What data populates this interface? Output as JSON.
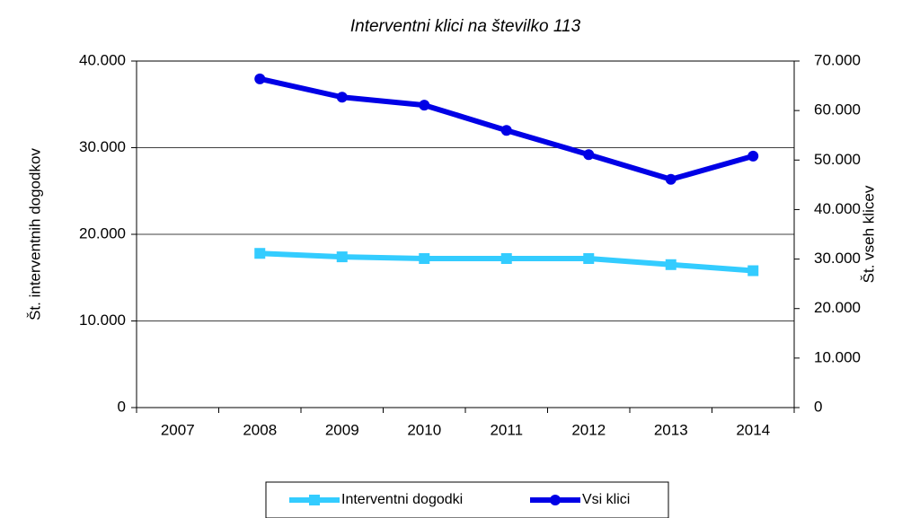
{
  "chart_data": {
    "type": "line",
    "title": "Interventni klici na številko 113",
    "ylabel": "Št. interventnih dogodkov",
    "y2label": "Št. vseh klicev",
    "categories": [
      "2007",
      "2008",
      "2009",
      "2010",
      "2011",
      "2012",
      "2013",
      "2014"
    ],
    "series": [
      {
        "name": "Interventni dogodki",
        "color": "#33ccff",
        "marker": "square",
        "values": [
          null,
          17800,
          17400,
          17200,
          17200,
          17200,
          16500,
          15800
        ]
      },
      {
        "name": "Vsi klici",
        "color": "#0000e6",
        "marker": "circle",
        "axis": "y2",
        "values": [
          null,
          66400,
          62700,
          61100,
          56000,
          51100,
          46100,
          50800
        ]
      }
    ],
    "ylim": [
      0,
      40000
    ],
    "yticks": [
      0,
      {
        "value": 10000,
        "label": "10.000"
      },
      {
        "value": 20000,
        "label": "20.000"
      },
      {
        "value": 30000,
        "label": "30.000"
      },
      {
        "value": 40000,
        "label": "40.000"
      }
    ],
    "y2lim": [
      0,
      70000
    ],
    "y2ticks": [
      0,
      {
        "value": 10000,
        "label": "10.000"
      },
      {
        "value": 20000,
        "label": "20.000"
      },
      {
        "value": 30000,
        "label": "30.000"
      },
      {
        "value": 40000,
        "label": "40.000"
      },
      {
        "value": 50000,
        "label": "50.000"
      },
      {
        "value": 60000,
        "label": "60.000"
      },
      {
        "value": 70000,
        "label": "70.000"
      }
    ],
    "grid": true,
    "legend": "bottom"
  }
}
